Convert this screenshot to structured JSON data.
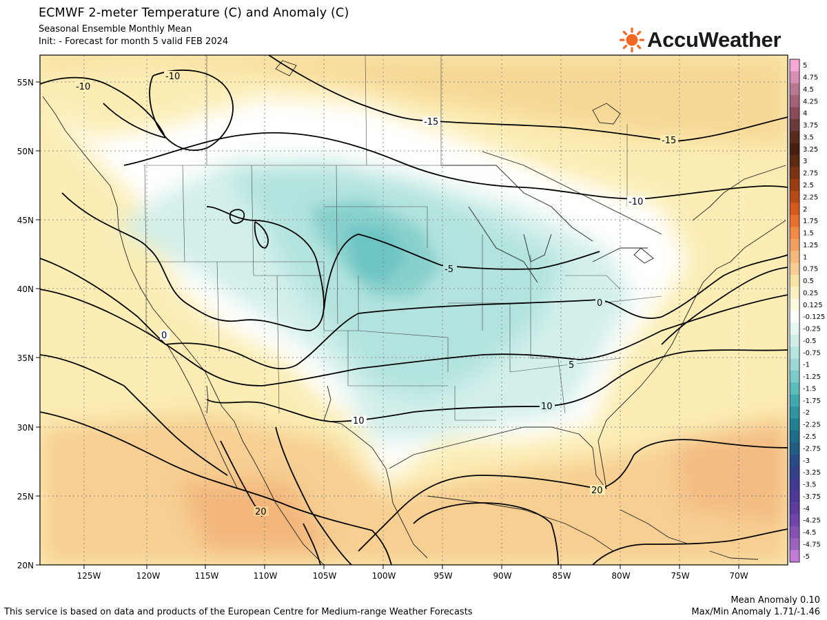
{
  "header": {
    "title": "ECMWF 2-meter Temperature (C) and Anomaly (C)",
    "subtitle": "Seasonal Ensemble Monthly Mean",
    "init_line": "Init:   - Forecast for month 5 valid FEB 2024"
  },
  "logo": {
    "text": "AccuWeather",
    "icon": "sun-icon",
    "color": "#f26722"
  },
  "map": {
    "lat_labels": [
      "55N",
      "50N",
      "45N",
      "40N",
      "35N",
      "30N",
      "25N",
      "20N"
    ],
    "lon_labels": [
      "125W",
      "120W",
      "115W",
      "110W",
      "105W",
      "100W",
      "95W",
      "90W",
      "85W",
      "80W",
      "75W",
      "70W"
    ],
    "contour_labels": [
      "-10",
      "-10",
      "-15",
      "-15",
      "-10",
      "-5",
      "0",
      "0",
      "5",
      "10",
      "10",
      "20",
      "20"
    ]
  },
  "colorbar": {
    "labels": [
      "5",
      "4.75",
      "4.5",
      "4.25",
      "4",
      "3.75",
      "3.5",
      "3.25",
      "3",
      "2.75",
      "2.5",
      "2.25",
      "2",
      "1.75",
      "1.5",
      "1.25",
      "1",
      "0.75",
      "0.5",
      "0.25",
      "0.125",
      "-0.125",
      "-0.25",
      "-0.5",
      "-0.75",
      "-1",
      "-1.25",
      "-1.5",
      "-1.75",
      "-2",
      "-2.25",
      "-2.5",
      "-2.75",
      "-3",
      "-3.25",
      "-3.5",
      "-3.75",
      "-4",
      "-4.25",
      "-4.5",
      "-4.75",
      "-5"
    ],
    "colors": [
      "#f7a8d6",
      "#d98fb5",
      "#b97891",
      "#a3627a",
      "#8a4a5a",
      "#6b3a3a",
      "#5a2a1e",
      "#4a1e0e",
      "#5c2a10",
      "#7a3412",
      "#9a3e12",
      "#b84a16",
      "#d65a1e",
      "#e8702e",
      "#f08a46",
      "#f2a060",
      "#f5b878",
      "#f7cd92",
      "#f9e3a6",
      "#fbf0bf",
      "#fffbe0",
      "#ffffff",
      "#e6f6f3",
      "#cfeeea",
      "#b6e6e0",
      "#9ad9d5",
      "#7ccbc9",
      "#5dbcbd",
      "#41a9ae",
      "#2f959f",
      "#228093",
      "#1d6d8a",
      "#215c85",
      "#2a4c86",
      "#35408b",
      "#413a92",
      "#4e3898",
      "#5e3c9f",
      "#7044a8",
      "#8552b4",
      "#9b62c0",
      "#c27cd8"
    ]
  },
  "footer": {
    "attribution": "This service is based on data and products of the European Centre for Medium-range Weather Forecasts",
    "mean_anomaly": "Mean Anomaly 0.10",
    "maxmin_anomaly": "Max/Min Anomaly 1.71/-1.46"
  }
}
